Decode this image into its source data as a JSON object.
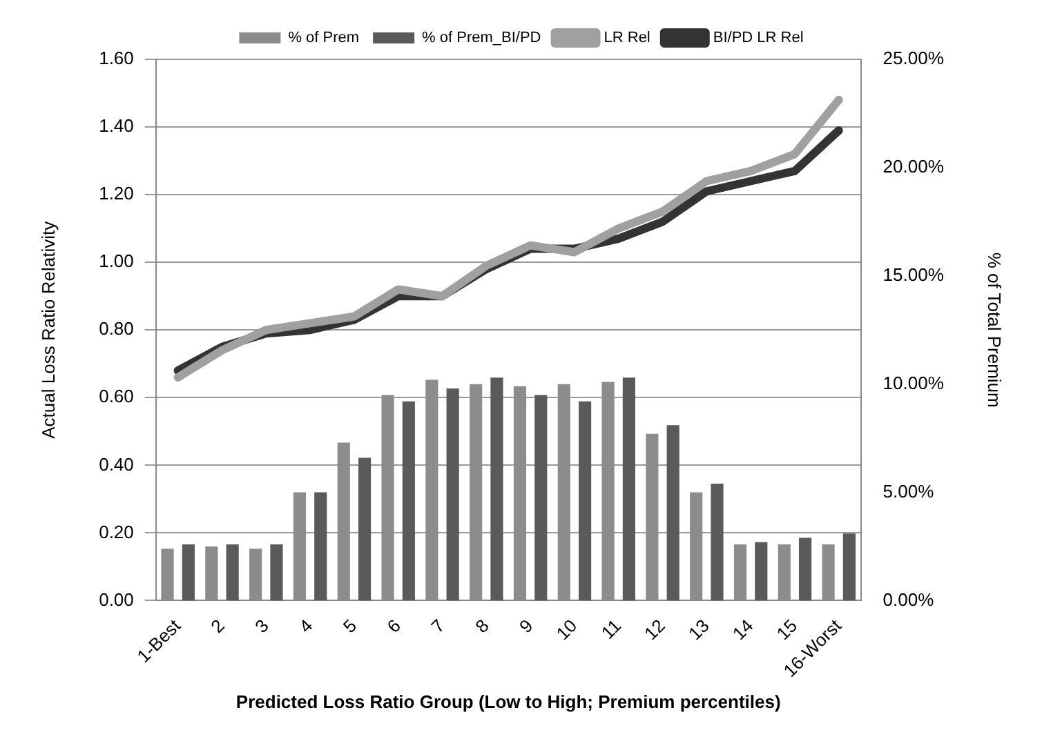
{
  "chart_data": {
    "type": "bar",
    "xlabel": "Predicted Loss Ratio Group (Low to High; Premium percentiles)",
    "ylabel": "Actual Loss Ratio Relativity",
    "y2label": "% of Total Premium",
    "categories": [
      "1-Best",
      "2",
      "3",
      "4",
      "5",
      "6",
      "7",
      "8",
      "9",
      "10",
      "11",
      "12",
      "13",
      "14",
      "15",
      "16-Worst"
    ],
    "series": [
      {
        "name": "% of Prem",
        "axis": "y2",
        "color": "#8c8c8c",
        "values": [
          2.4,
          2.5,
          2.4,
          5.0,
          7.3,
          9.5,
          10.2,
          10.0,
          9.9,
          10.0,
          10.1,
          7.7,
          5.0,
          2.6,
          2.6,
          2.6
        ]
      },
      {
        "name": "% of Prem_BI/PD",
        "axis": "y2",
        "color": "#5a5a5a",
        "values": [
          2.6,
          2.6,
          2.6,
          5.0,
          6.6,
          9.2,
          9.8,
          10.3,
          9.5,
          9.2,
          10.3,
          8.1,
          5.4,
          2.7,
          2.9,
          3.1
        ]
      },
      {
        "name": "LR Rel",
        "type": "line",
        "color": "#a0a0a0",
        "values": [
          0.66,
          0.74,
          0.8,
          0.82,
          0.84,
          0.92,
          0.9,
          0.99,
          1.05,
          1.03,
          1.1,
          1.15,
          1.24,
          1.27,
          1.32,
          1.48
        ]
      },
      {
        "name": "BI/PD LR Rel",
        "type": "line",
        "color": "#333333",
        "values": [
          0.68,
          0.75,
          0.79,
          0.8,
          0.83,
          0.9,
          0.9,
          0.98,
          1.04,
          1.04,
          1.07,
          1.12,
          1.21,
          1.24,
          1.27,
          1.39
        ]
      }
    ],
    "ylim": [
      0,
      1.6
    ],
    "yticks": [
      {
        "value": 0,
        "label": "0.00"
      },
      {
        "value": 0.2,
        "label": "0.20"
      },
      {
        "value": 0.4,
        "label": "0.40"
      },
      {
        "value": 0.6,
        "label": "0.60"
      },
      {
        "value": 0.8,
        "label": "0.80"
      },
      {
        "value": 1,
        "label": "1.00"
      },
      {
        "value": 1.2,
        "label": "1.20"
      },
      {
        "value": 1.4,
        "label": "1.40"
      },
      {
        "value": 1.6,
        "label": "1.60"
      }
    ],
    "y2lim": [
      0,
      25
    ],
    "y2ticks": [
      {
        "value": 0,
        "label": "0.00%"
      },
      {
        "value": 5,
        "label": "5.00%"
      },
      {
        "value": 10,
        "label": "10.00%"
      },
      {
        "value": 15,
        "label": "15.00%"
      },
      {
        "value": 20,
        "label": "20.00%"
      },
      {
        "value": 25,
        "label": "25.00%"
      }
    ],
    "grid": "y",
    "legend": "top",
    "marker": "none"
  }
}
